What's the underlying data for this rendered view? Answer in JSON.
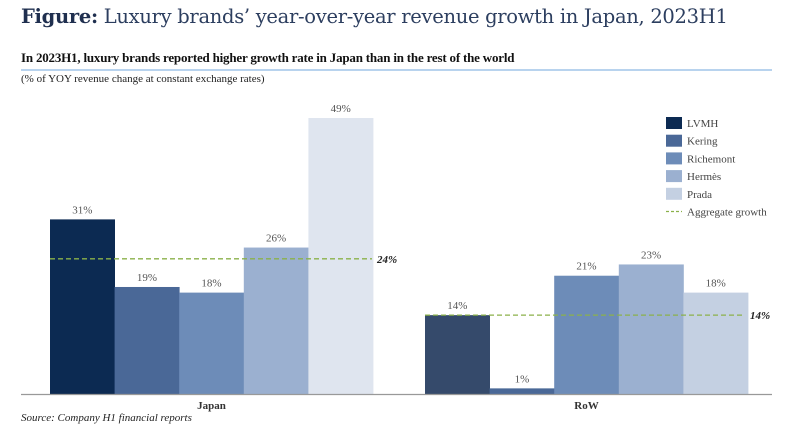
{
  "figure": {
    "prefix": "Figure:",
    "title": " Luxury brands’ year-over-year revenue growth in Japan, 2023H1"
  },
  "subtitle": "In 2023H1, luxury brands reported higher growth rate in Japan than in the rest of the world",
  "units": "(% of YOY revenue change at constant exchange rates)",
  "source": "Source: Company H1 financial reports",
  "chart_data": {
    "type": "bar",
    "title": "In 2023H1, luxury brands reported higher growth rate in Japan than in the rest of the world",
    "subtitle": "(% of YOY revenue change at constant exchange rates)",
    "xlabel": "",
    "ylabel": "% of YOY revenue change at constant exchange rates",
    "ylim": [
      0,
      50
    ],
    "grid": false,
    "legend_position": "top-right",
    "categories": [
      "Japan",
      "RoW"
    ],
    "series": [
      {
        "name": "LVMH",
        "values": [
          31,
          14
        ],
        "colors": [
          "#0c2a52",
          "#354a6b"
        ]
      },
      {
        "name": "Kering",
        "values": [
          19,
          1
        ],
        "color": "#4a6897"
      },
      {
        "name": "Richemont",
        "values": [
          18,
          21
        ],
        "color": "#6d8cb8"
      },
      {
        "name": "Hermès",
        "values": [
          26,
          23
        ],
        "color": "#9bb0d0"
      },
      {
        "name": "Prada",
        "values": [
          49,
          18
        ],
        "colors": [
          "#dfe5ef",
          "#c4d0e2"
        ]
      }
    ],
    "value_labels": [
      [
        "31%",
        "19%",
        "18%",
        "26%",
        "49%"
      ],
      [
        "14%",
        "1%",
        "21%",
        "23%",
        "18%"
      ]
    ],
    "aggregate_growth": {
      "name": "Aggregate growth",
      "values": [
        24,
        14
      ],
      "labels": [
        "24%",
        "14%"
      ],
      "color": "#8bb14a",
      "style": "dashed"
    },
    "legend": [
      {
        "label": "LVMH",
        "color": "#0c2a52",
        "kind": "box"
      },
      {
        "label": "Kering",
        "color": "#4a6897",
        "kind": "box"
      },
      {
        "label": "Richemont",
        "color": "#6d8cb8",
        "kind": "box"
      },
      {
        "label": "Hermès",
        "color": "#9bb0d0",
        "kind": "box"
      },
      {
        "label": "Prada",
        "color": "#c4d0e2",
        "kind": "box"
      },
      {
        "label": "Aggregate growth",
        "color": "#8bb14a",
        "kind": "dash"
      }
    ]
  }
}
